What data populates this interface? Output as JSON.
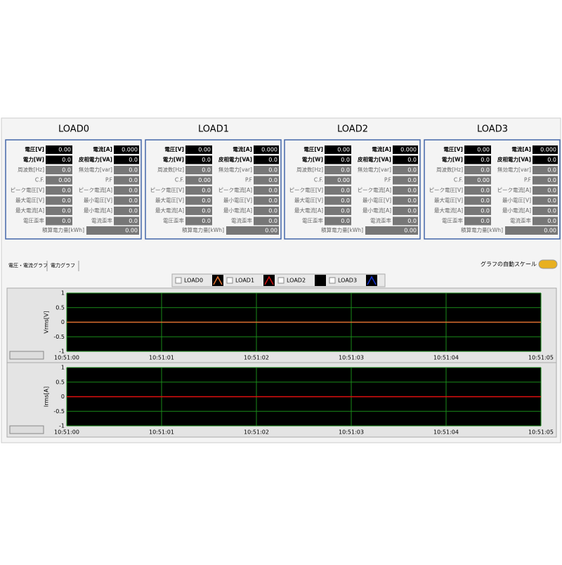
{
  "loads": [
    {
      "title": "LOAD0",
      "rows": [
        [
          "電圧[V]",
          "0.00",
          "電流[A]",
          "0.000"
        ],
        [
          "電力[W]",
          "0.0",
          "皮相電力[VA]",
          "0.0"
        ],
        [
          "周波数[Hz]",
          "0.0",
          "無効電力[var]",
          "0.0"
        ],
        [
          "C.F.",
          "0.00",
          "P.F",
          "0.0"
        ],
        [
          "ピーク電圧[V]",
          "0.0",
          "ピーク電流[A]",
          "0.0"
        ],
        [
          "最大電圧[V]",
          "0.0",
          "最小電圧[V]",
          "0.0"
        ],
        [
          "最大電流[A]",
          "0.0",
          "最小電流[A]",
          "0.0"
        ],
        [
          "電圧歪率",
          "0.0",
          "電流歪率",
          "0.0"
        ]
      ],
      "total": [
        "積算電力量[kWh]",
        "0.00"
      ]
    },
    {
      "title": "LOAD1",
      "rows": [
        [
          "電圧[V]",
          "0.00",
          "電流[A]",
          "0.000"
        ],
        [
          "電力[W]",
          "0.0",
          "皮相電力[VA]",
          "0.0"
        ],
        [
          "周波数[Hz]",
          "0.0",
          "無効電力[var]",
          "0.0"
        ],
        [
          "C.F.",
          "0.00",
          "P.F",
          "0.0"
        ],
        [
          "ピーク電圧[V]",
          "0.0",
          "ピーク電流[A]",
          "0.0"
        ],
        [
          "最大電圧[V]",
          "0.0",
          "最小電圧[V]",
          "0.0"
        ],
        [
          "最大電流[A]",
          "0.0",
          "最小電流[A]",
          "0.0"
        ],
        [
          "電圧歪率",
          "0.0",
          "電流歪率",
          "0.0"
        ]
      ],
      "total": [
        "積算電力量[kWh]",
        "0.00"
      ]
    },
    {
      "title": "LOAD2",
      "rows": [
        [
          "電圧[V]",
          "0.00",
          "電流[A]",
          "0.000"
        ],
        [
          "電力[W]",
          "0.0",
          "皮相電力[VA]",
          "0.0"
        ],
        [
          "周波数[Hz]",
          "0.0",
          "無効電力[var]",
          "0.0"
        ],
        [
          "C.F.",
          "0.00",
          "P.F",
          "0.0"
        ],
        [
          "ピーク電圧[V]",
          "0.0",
          "ピーク電流[A]",
          "0.0"
        ],
        [
          "最大電圧[V]",
          "0.0",
          "最小電圧[V]",
          "0.0"
        ],
        [
          "最大電流[A]",
          "0.0",
          "最小電流[A]",
          "0.0"
        ],
        [
          "電圧歪率",
          "0.0",
          "電流歪率",
          "0.0"
        ]
      ],
      "total": [
        "積算電力量[kWh]",
        "0.00"
      ]
    },
    {
      "title": "LOAD3",
      "rows": [
        [
          "電圧[V]",
          "0.00",
          "電流[A]",
          "0.000"
        ],
        [
          "電力[W]",
          "0.0",
          "皮相電力[VA]",
          "0.0"
        ],
        [
          "周波数[Hz]",
          "0.0",
          "無効電力[var]",
          "0.0"
        ],
        [
          "C.F.",
          "0.00",
          "P.F",
          "0.0"
        ],
        [
          "ピーク電圧[V]",
          "0.0",
          "ピーク電流[A]",
          "0.0"
        ],
        [
          "最大電圧[V]",
          "0.0",
          "最小電圧[V]",
          "0.0"
        ],
        [
          "最大電流[A]",
          "0.0",
          "最小電流[A]",
          "0.0"
        ],
        [
          "電圧歪率",
          "0.0",
          "電流歪率",
          "0.0"
        ]
      ],
      "total": [
        "積算電力量[kWh]",
        "0.00"
      ]
    }
  ],
  "tabs": [
    "電圧・電流グラフ",
    "電力グラフ"
  ],
  "autoscale": "グラフの自動スケール",
  "legend": [
    {
      "name": "LOAD0",
      "color": "#e07030"
    },
    {
      "name": "LOAD1",
      "color": "#d01010"
    },
    {
      "name": "LOAD2",
      "color": "#000000"
    },
    {
      "name": "LOAD3",
      "color": "#1030d0"
    }
  ],
  "graphs": [
    {
      "ylabel": "Vrms[V]",
      "ylim": [
        -1,
        1
      ],
      "yticks": [
        1,
        0.5,
        0,
        -0.5,
        -1
      ],
      "xticks": [
        "10:51:00",
        "10:51:01",
        "10:51:02",
        "10:51:03",
        "10:51:04",
        "10:51:05"
      ],
      "line": {
        "value": 0,
        "color": "#e07030"
      }
    },
    {
      "ylabel": "Irms[A]",
      "ylim": [
        -1,
        1
      ],
      "yticks": [
        1,
        0.5,
        0,
        -0.5,
        -1
      ],
      "xticks": [
        "10:51:00",
        "10:51:01",
        "10:51:02",
        "10:51:03",
        "10:51:04",
        "10:51:05"
      ],
      "line": {
        "value": 0,
        "color": "#e01010"
      }
    }
  ]
}
